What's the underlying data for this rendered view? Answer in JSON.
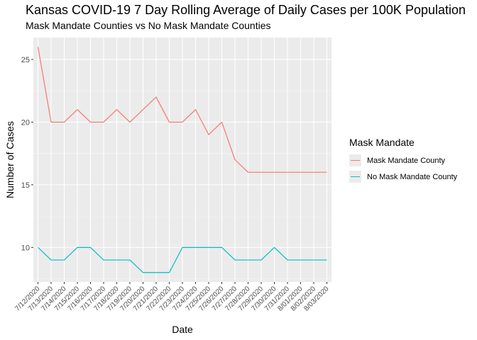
{
  "chart_data": {
    "type": "line",
    "title": "Kansas COVID-19 7 Day Rolling Average of Daily Cases per 100K Population",
    "subtitle": "Mask Mandate Counties vs No Mask Mandate Counties",
    "xlabel": "Date",
    "ylabel": "Number of Cases",
    "x": [
      "7/12/2020",
      "7/13/2020",
      "7/14/2020",
      "7/15/2020",
      "7/16/2020",
      "7/17/2020",
      "7/18/2020",
      "7/19/2020",
      "7/20/2020",
      "7/21/2020",
      "7/22/2020",
      "7/23/2020",
      "7/24/2020",
      "7/25/2020",
      "7/26/2020",
      "7/27/2020",
      "7/28/2020",
      "7/29/2020",
      "7/30/2020",
      "7/31/2020",
      "8/01/2020",
      "8/02/2020",
      "8/03/2020"
    ],
    "ylim": [
      7.25,
      26.75
    ],
    "yticks": [
      10,
      15,
      20,
      25
    ],
    "grid": true,
    "legend_title": "Mask Mandate",
    "legend_position": "right",
    "series": [
      {
        "name": "Mask Mandate County",
        "color": "#F8766D",
        "values": [
          26,
          20,
          20,
          21,
          20,
          20,
          21,
          20,
          21,
          22,
          20,
          20,
          21,
          19,
          20,
          17,
          16,
          16,
          16,
          16,
          16,
          16,
          16
        ]
      },
      {
        "name": "No Mask Mandate County",
        "color": "#00BFC4",
        "values": [
          10,
          9,
          9,
          10,
          10,
          9,
          9,
          9,
          8,
          8,
          8,
          10,
          10,
          10,
          10,
          9,
          9,
          9,
          10,
          9,
          9,
          9,
          9
        ]
      }
    ]
  }
}
